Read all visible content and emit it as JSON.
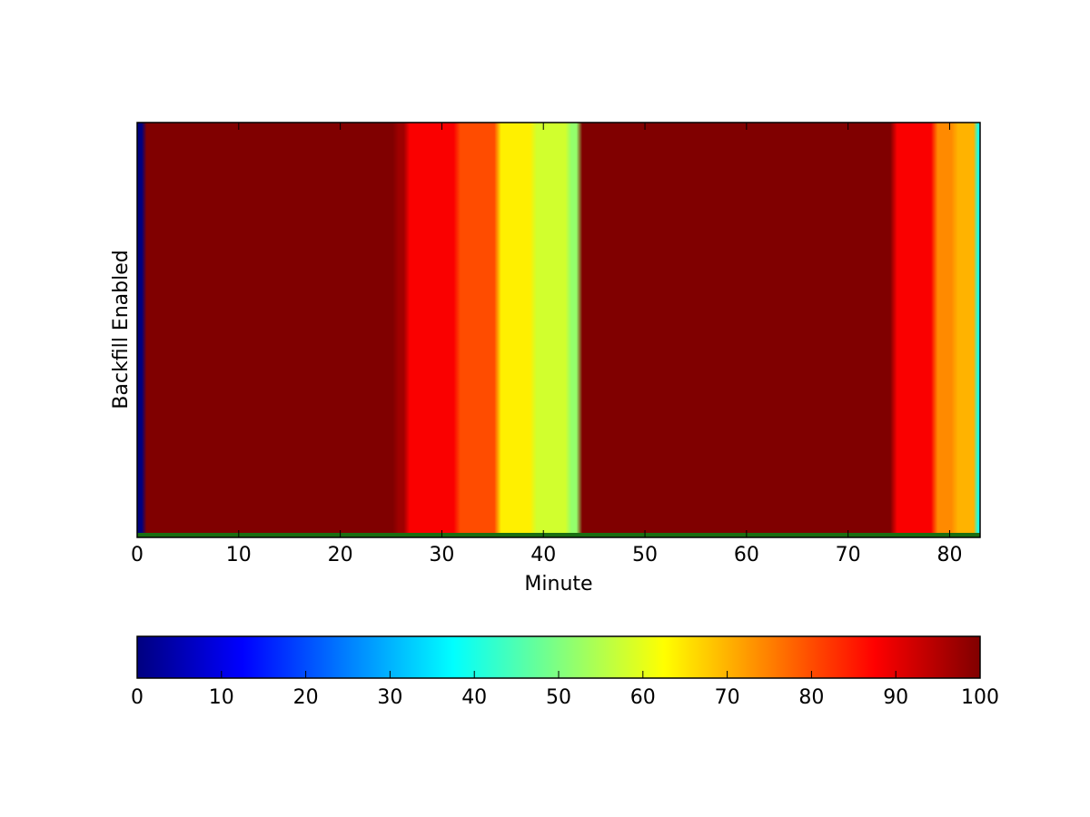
{
  "chart_data": {
    "type": "heatmap",
    "xlabel": "Minute",
    "ylabel": "Backfill Enabled",
    "xlim": [
      0,
      83
    ],
    "x_ticks": [
      "0",
      "10",
      "20",
      "30",
      "40",
      "50",
      "60",
      "70",
      "80"
    ],
    "colormap": "jet",
    "color_range": [
      0,
      100
    ],
    "colorbar_ticks": [
      "0",
      "10",
      "20",
      "30",
      "40",
      "50",
      "60",
      "70",
      "80",
      "90",
      "100"
    ],
    "colorbar_orientation": "horizontal",
    "segments": [
      {
        "x_start": 0,
        "x_end": 0.6,
        "value": 0
      },
      {
        "x_start": 0.6,
        "x_end": 25.5,
        "value": 100
      },
      {
        "x_start": 25.5,
        "x_end": 26.5,
        "value": 97
      },
      {
        "x_start": 26.5,
        "x_end": 31.5,
        "value": 88
      },
      {
        "x_start": 31.5,
        "x_end": 35.5,
        "value": 80
      },
      {
        "x_start": 35.5,
        "x_end": 39.0,
        "value": 64
      },
      {
        "x_start": 39.0,
        "x_end": 42.5,
        "value": 58
      },
      {
        "x_start": 42.5,
        "x_end": 43.5,
        "value": 52
      },
      {
        "x_start": 43.5,
        "x_end": 74.5,
        "value": 100
      },
      {
        "x_start": 74.5,
        "x_end": 78.5,
        "value": 88
      },
      {
        "x_start": 78.5,
        "x_end": 80.5,
        "value": 74
      },
      {
        "x_start": 80.5,
        "x_end": 82.7,
        "value": 70
      },
      {
        "x_start": 82.7,
        "x_end": 83,
        "value": 40
      }
    ]
  }
}
